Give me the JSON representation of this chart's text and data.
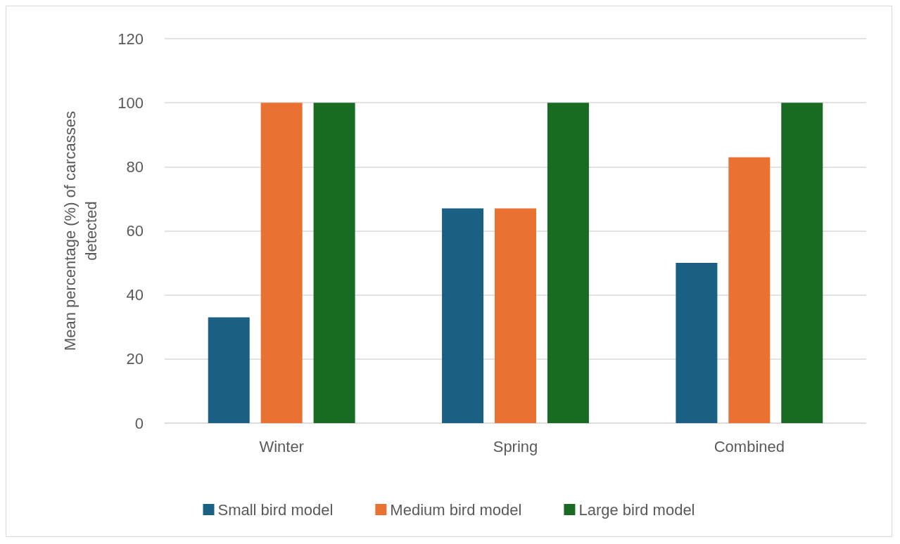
{
  "chart_data": {
    "type": "bar",
    "ylabel": "Mean percentage (%) of carcasses\ndetected",
    "categories": [
      "Winter",
      "Spring",
      "Combined"
    ],
    "series": [
      {
        "name": "Small bird model",
        "color": "#1a5f84",
        "values": [
          33,
          67,
          50
        ]
      },
      {
        "name": "Medium bird model",
        "color": "#e97132",
        "values": [
          100,
          67,
          83
        ]
      },
      {
        "name": "Large bird model",
        "color": "#196b24",
        "values": [
          100,
          100,
          100
        ]
      }
    ],
    "ylim": [
      0,
      120
    ],
    "yticks": [
      0,
      20,
      40,
      60,
      80,
      100,
      120
    ],
    "grid": "y",
    "legend": "bottom"
  }
}
